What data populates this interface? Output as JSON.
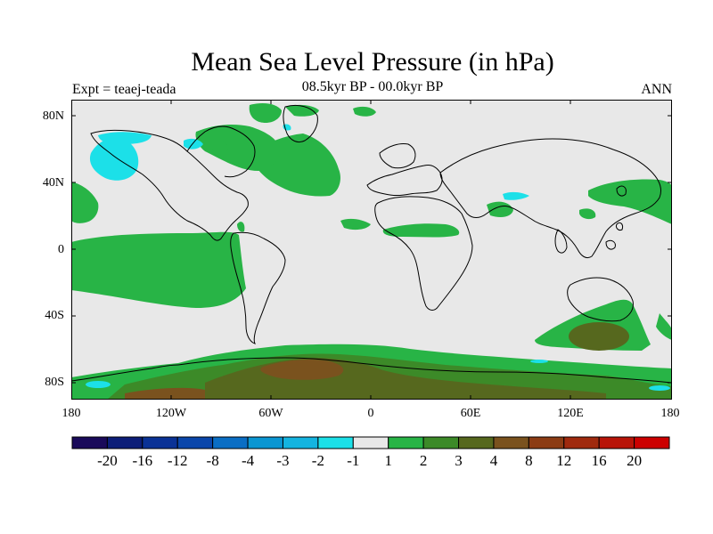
{
  "header": {
    "title": "Mean Sea Level Pressure (in hPa)",
    "subtitle": "08.5kyr BP - 00.0kyr BP",
    "left_label": "Expt = teaej-teada",
    "right_label": "ANN"
  },
  "axes": {
    "lat_ticks": [
      "80N",
      "40N",
      "0",
      "40S",
      "80S"
    ],
    "lon_ticks": [
      "180",
      "120W",
      "60W",
      "0",
      "60E",
      "120E",
      "180"
    ]
  },
  "colorbar": {
    "labels": [
      "-20",
      "-16",
      "-12",
      "-8",
      "-4",
      "-3",
      "-2",
      "-1",
      "1",
      "2",
      "3",
      "4",
      "8",
      "12",
      "16",
      "20"
    ],
    "colors": [
      "#1a0a5a",
      "#0c1e78",
      "#0a3296",
      "#0a46aa",
      "#0a6ec4",
      "#0a96d2",
      "#14b4e0",
      "#1ce0e8",
      "#e8e8e8",
      "#28b446",
      "#3c8a28",
      "#56681e",
      "#7a521e",
      "#8c3c14",
      "#a02a0e",
      "#b81408",
      "#cc0000"
    ]
  },
  "colors": {
    "land_ocean_background": "#e8e8e8",
    "positive_1_2": "#28b446",
    "negative_1_2": "#1ce0e8",
    "positive_3_4": "#56681e",
    "positive_4_8": "#7a521e"
  }
}
